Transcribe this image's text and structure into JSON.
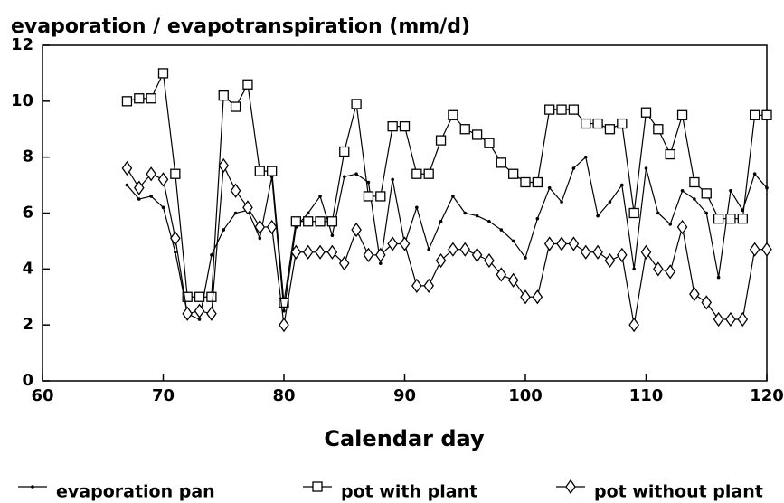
{
  "chart_data": {
    "type": "line",
    "title": "evaporation / evapotranspiration (mm/d)",
    "x_label": "Calendar day",
    "x": [
      67,
      68,
      69,
      70,
      71,
      72,
      73,
      74,
      75,
      76,
      77,
      78,
      79,
      80,
      81,
      82,
      83,
      84,
      85,
      86,
      87,
      88,
      89,
      90,
      91,
      92,
      93,
      94,
      95,
      96,
      97,
      98,
      99,
      100,
      101,
      102,
      103,
      104,
      105,
      106,
      107,
      108,
      109,
      110,
      111,
      112,
      113,
      114,
      115,
      116,
      117,
      118,
      119,
      120
    ],
    "series": [
      {
        "name": "evaporation pan",
        "color": "#000000",
        "marker": "dot",
        "values": [
          7,
          6.5,
          6.6,
          6.2,
          4.6,
          2.4,
          2.2,
          4.5,
          5.4,
          6,
          6.1,
          5.1,
          7.3,
          2.5,
          5.5,
          6,
          6.6,
          5.2,
          7.3,
          7.4,
          7.1,
          4.2,
          7.2,
          4.9,
          6.2,
          4.7,
          5.7,
          6.6,
          6,
          5.9,
          5.7,
          5.4,
          5,
          4.4,
          5.8,
          6.9,
          6.4,
          7.6,
          8,
          5.9,
          6.4,
          7,
          4,
          7.6,
          6,
          5.6,
          6.8,
          6.5,
          6,
          3.7,
          6.8,
          6.1,
          7.4,
          6.9
        ]
      },
      {
        "name": "pot with plant",
        "color": "#000000",
        "marker": "square",
        "values": [
          10,
          10.1,
          10.1,
          11,
          7.4,
          3,
          3,
          3,
          10.2,
          9.8,
          10.6,
          7.5,
          7.5,
          2.8,
          5.7,
          5.7,
          5.7,
          5.7,
          8.2,
          9.9,
          6.6,
          6.6,
          9.1,
          9.1,
          7.4,
          7.4,
          8.6,
          9.5,
          9,
          8.8,
          8.5,
          7.8,
          7.4,
          7.1,
          7.1,
          9.7,
          9.7,
          9.7,
          9.2,
          9.2,
          9,
          9.2,
          6,
          9.6,
          9,
          8.1,
          9.5,
          7.1,
          6.7,
          5.8,
          5.8,
          5.8,
          9.5,
          9.5
        ]
      },
      {
        "name": "pot without plant",
        "color": "#000000",
        "marker": "diamond",
        "values": [
          7.6,
          6.9,
          7.4,
          7.2,
          5.1,
          2.4,
          2.5,
          2.4,
          7.7,
          6.8,
          6.2,
          5.5,
          5.5,
          2,
          4.6,
          4.6,
          4.6,
          4.6,
          4.2,
          5.4,
          4.5,
          4.5,
          4.9,
          4.9,
          3.4,
          3.4,
          4.3,
          4.7,
          4.7,
          4.5,
          4.3,
          3.8,
          3.6,
          3,
          3,
          4.9,
          4.9,
          4.9,
          4.6,
          4.6,
          4.3,
          4.5,
          2,
          4.6,
          4,
          3.9,
          5.5,
          3.1,
          2.8,
          2.2,
          2.2,
          2.2,
          4.7,
          4.7
        ]
      }
    ],
    "xlim": [
      60,
      120
    ],
    "xticks": [
      60,
      70,
      80,
      90,
      100,
      110,
      120
    ],
    "ylim": [
      0,
      12
    ],
    "yticks": [
      0,
      2,
      4,
      6,
      8,
      10,
      12
    ]
  }
}
